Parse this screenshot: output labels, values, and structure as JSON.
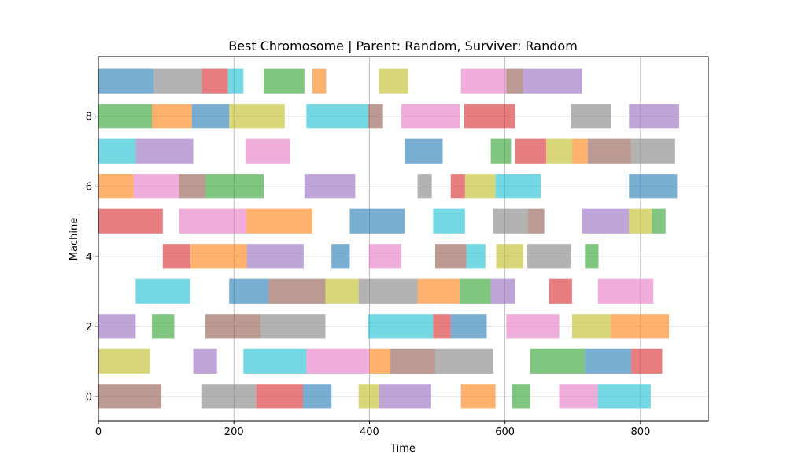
{
  "chart_data": {
    "type": "gantt",
    "title": "Best Chromosome | Parent: Random, Surviver: Random",
    "xlabel": "Time",
    "ylabel": "Machine",
    "xlim": [
      0,
      900
    ],
    "ylim": [
      -0.7,
      9.7
    ],
    "x_ticks": [
      0,
      200,
      400,
      600,
      800
    ],
    "y_ticks": [
      0,
      2,
      4,
      6,
      8
    ],
    "grid": true,
    "bar_opacity": 0.6,
    "job_colors": [
      "#1f77b4",
      "#ff7f0e",
      "#2ca02c",
      "#d62728",
      "#9467bd",
      "#8c564b",
      "#e377c2",
      "#7f7f7f",
      "#bcbd22",
      "#17becf"
    ],
    "machines": [
      {
        "machine": 0,
        "ops": [
          {
            "start": 0,
            "end": 93,
            "job": 5
          },
          {
            "start": 153,
            "end": 233,
            "job": 7
          },
          {
            "start": 233,
            "end": 302,
            "job": 3
          },
          {
            "start": 302,
            "end": 344,
            "job": 0
          },
          {
            "start": 384,
            "end": 414,
            "job": 8
          },
          {
            "start": 414,
            "end": 491,
            "job": 4
          },
          {
            "start": 535,
            "end": 586,
            "job": 1
          },
          {
            "start": 610,
            "end": 637,
            "job": 2
          },
          {
            "start": 680,
            "end": 737,
            "job": 6
          },
          {
            "start": 737,
            "end": 815,
            "job": 9
          }
        ]
      },
      {
        "machine": 1,
        "ops": [
          {
            "start": 0,
            "end": 76,
            "job": 8
          },
          {
            "start": 140,
            "end": 175,
            "job": 4
          },
          {
            "start": 214,
            "end": 307,
            "job": 9
          },
          {
            "start": 307,
            "end": 400,
            "job": 6
          },
          {
            "start": 400,
            "end": 431,
            "job": 1
          },
          {
            "start": 431,
            "end": 497,
            "job": 5
          },
          {
            "start": 497,
            "end": 583,
            "job": 7
          },
          {
            "start": 637,
            "end": 718,
            "job": 2
          },
          {
            "start": 718,
            "end": 786,
            "job": 0
          },
          {
            "start": 786,
            "end": 832,
            "job": 3
          }
        ]
      },
      {
        "machine": 2,
        "ops": [
          {
            "start": 0,
            "end": 55,
            "job": 4
          },
          {
            "start": 79,
            "end": 112,
            "job": 2
          },
          {
            "start": 158,
            "end": 240,
            "job": 5
          },
          {
            "start": 240,
            "end": 335,
            "job": 7
          },
          {
            "start": 398,
            "end": 494,
            "job": 9
          },
          {
            "start": 494,
            "end": 520,
            "job": 3
          },
          {
            "start": 520,
            "end": 573,
            "job": 0
          },
          {
            "start": 602,
            "end": 680,
            "job": 6
          },
          {
            "start": 699,
            "end": 756,
            "job": 8
          },
          {
            "start": 756,
            "end": 842,
            "job": 1
          }
        ]
      },
      {
        "machine": 3,
        "ops": [
          {
            "start": 55,
            "end": 135,
            "job": 9
          },
          {
            "start": 193,
            "end": 251,
            "job": 0
          },
          {
            "start": 251,
            "end": 335,
            "job": 5
          },
          {
            "start": 335,
            "end": 384,
            "job": 8
          },
          {
            "start": 384,
            "end": 471,
            "job": 7
          },
          {
            "start": 471,
            "end": 533,
            "job": 1
          },
          {
            "start": 533,
            "end": 579,
            "job": 2
          },
          {
            "start": 579,
            "end": 615,
            "job": 4
          },
          {
            "start": 665,
            "end": 699,
            "job": 3
          },
          {
            "start": 737,
            "end": 819,
            "job": 6
          }
        ]
      },
      {
        "machine": 4,
        "ops": [
          {
            "start": 95,
            "end": 136,
            "job": 3
          },
          {
            "start": 136,
            "end": 219,
            "job": 1
          },
          {
            "start": 219,
            "end": 303,
            "job": 4
          },
          {
            "start": 344,
            "end": 371,
            "job": 0
          },
          {
            "start": 399,
            "end": 447,
            "job": 6
          },
          {
            "start": 497,
            "end": 543,
            "job": 5
          },
          {
            "start": 543,
            "end": 571,
            "job": 9
          },
          {
            "start": 587,
            "end": 627,
            "job": 8
          },
          {
            "start": 633,
            "end": 697,
            "job": 7
          },
          {
            "start": 718,
            "end": 738,
            "job": 2
          }
        ]
      },
      {
        "machine": 5,
        "ops": [
          {
            "start": 0,
            "end": 95,
            "job": 3
          },
          {
            "start": 119,
            "end": 218,
            "job": 6
          },
          {
            "start": 218,
            "end": 316,
            "job": 1
          },
          {
            "start": 371,
            "end": 452,
            "job": 0
          },
          {
            "start": 494,
            "end": 541,
            "job": 9
          },
          {
            "start": 583,
            "end": 634,
            "job": 7
          },
          {
            "start": 634,
            "end": 658,
            "job": 5
          },
          {
            "start": 714,
            "end": 783,
            "job": 4
          },
          {
            "start": 783,
            "end": 817,
            "job": 8
          },
          {
            "start": 817,
            "end": 837,
            "job": 2
          }
        ]
      },
      {
        "machine": 6,
        "ops": [
          {
            "start": 0,
            "end": 52,
            "job": 1
          },
          {
            "start": 52,
            "end": 119,
            "job": 6
          },
          {
            "start": 119,
            "end": 158,
            "job": 5
          },
          {
            "start": 158,
            "end": 244,
            "job": 2
          },
          {
            "start": 304,
            "end": 379,
            "job": 4
          },
          {
            "start": 471,
            "end": 492,
            "job": 7
          },
          {
            "start": 520,
            "end": 541,
            "job": 3
          },
          {
            "start": 541,
            "end": 586,
            "job": 8
          },
          {
            "start": 586,
            "end": 653,
            "job": 9
          },
          {
            "start": 783,
            "end": 854,
            "job": 0
          }
        ]
      },
      {
        "machine": 7,
        "ops": [
          {
            "start": 0,
            "end": 55,
            "job": 9
          },
          {
            "start": 55,
            "end": 140,
            "job": 4
          },
          {
            "start": 217,
            "end": 283,
            "job": 6
          },
          {
            "start": 452,
            "end": 508,
            "job": 0
          },
          {
            "start": 579,
            "end": 609,
            "job": 2
          },
          {
            "start": 615,
            "end": 661,
            "job": 3
          },
          {
            "start": 661,
            "end": 699,
            "job": 8
          },
          {
            "start": 699,
            "end": 722,
            "job": 1
          },
          {
            "start": 722,
            "end": 786,
            "job": 5
          },
          {
            "start": 786,
            "end": 851,
            "job": 7
          }
        ]
      },
      {
        "machine": 8,
        "ops": [
          {
            "start": 0,
            "end": 79,
            "job": 2
          },
          {
            "start": 79,
            "end": 138,
            "job": 1
          },
          {
            "start": 138,
            "end": 193,
            "job": 0
          },
          {
            "start": 193,
            "end": 275,
            "job": 8
          },
          {
            "start": 307,
            "end": 398,
            "job": 9
          },
          {
            "start": 398,
            "end": 420,
            "job": 5
          },
          {
            "start": 447,
            "end": 533,
            "job": 6
          },
          {
            "start": 540,
            "end": 615,
            "job": 3
          },
          {
            "start": 697,
            "end": 756,
            "job": 7
          },
          {
            "start": 783,
            "end": 857,
            "job": 4
          }
        ]
      },
      {
        "machine": 9,
        "ops": [
          {
            "start": 0,
            "end": 82,
            "job": 0
          },
          {
            "start": 82,
            "end": 153,
            "job": 7
          },
          {
            "start": 153,
            "end": 191,
            "job": 3
          },
          {
            "start": 191,
            "end": 214,
            "job": 9
          },
          {
            "start": 244,
            "end": 304,
            "job": 2
          },
          {
            "start": 316,
            "end": 336,
            "job": 1
          },
          {
            "start": 414,
            "end": 457,
            "job": 8
          },
          {
            "start": 535,
            "end": 602,
            "job": 6
          },
          {
            "start": 602,
            "end": 627,
            "job": 5
          },
          {
            "start": 627,
            "end": 714,
            "job": 4
          }
        ]
      }
    ]
  }
}
